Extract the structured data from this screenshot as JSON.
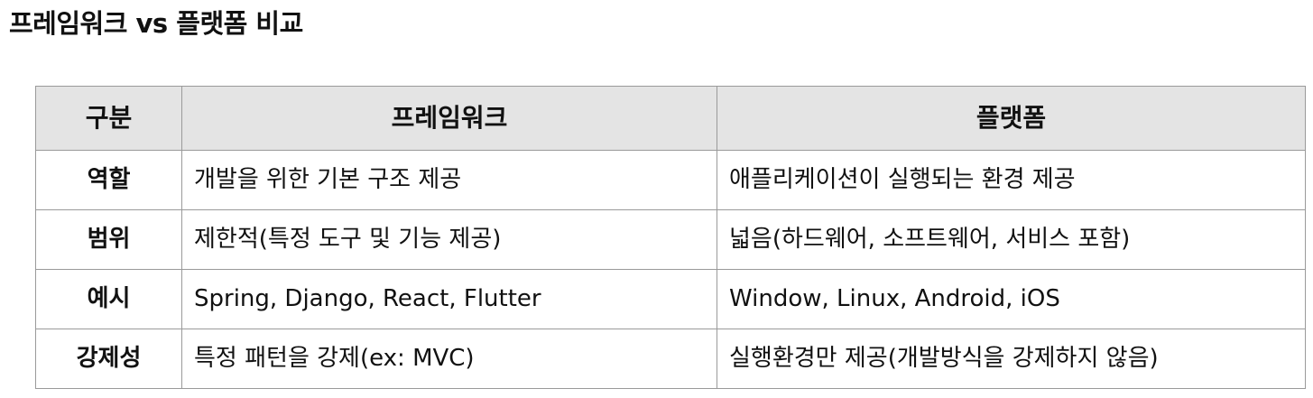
{
  "title": "프레임워크 vs 플랫폼 비교",
  "table": {
    "headers": [
      "구분",
      "프레임워크",
      "플랫폼"
    ],
    "rows": [
      {
        "label": "역할",
        "framework": "개발을 위한 기본 구조 제공",
        "platform": "애플리케이션이 실행되는 환경 제공"
      },
      {
        "label": "범위",
        "framework": "제한적(특정 도구 및 기능 제공)",
        "platform": "넓음(하드웨어, 소프트웨어, 서비스 포함)"
      },
      {
        "label": "예시",
        "framework": "Spring, Django, React, Flutter",
        "platform": "Window, Linux, Android, iOS"
      },
      {
        "label": "강제성",
        "framework": "특정 패턴을 강제(ex: MVC)",
        "platform": "실행환경만 제공(개발방식을 강제하지 않음)"
      }
    ]
  },
  "colors": {
    "header_bg": "#e4e4e4",
    "border": "#9a9a9a",
    "text": "#111111"
  }
}
